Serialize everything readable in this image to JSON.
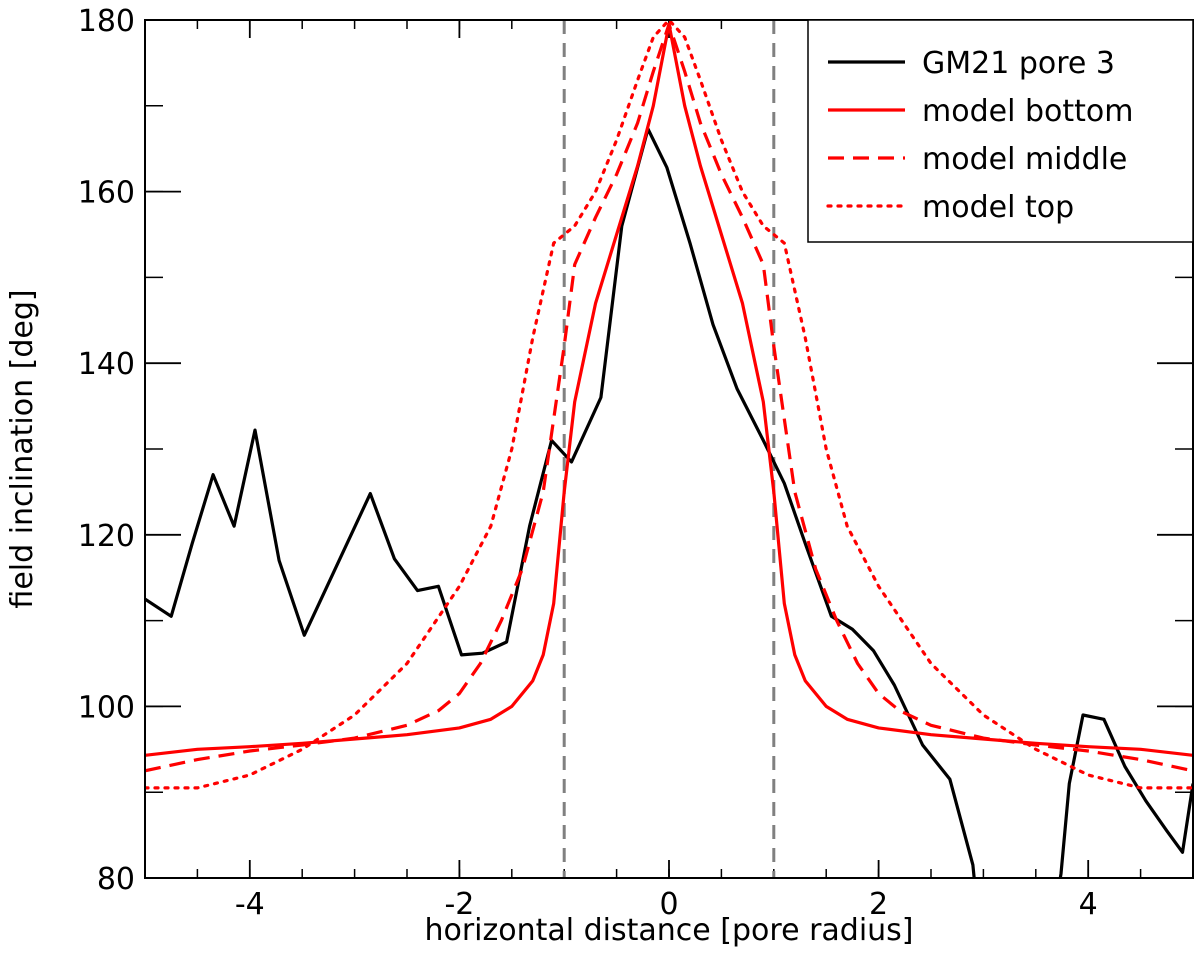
{
  "chart_data": {
    "type": "line",
    "title": "",
    "xlabel": "horizontal distance [pore radius]",
    "ylabel": "field inclination [deg]",
    "xlim": [
      -5,
      5
    ],
    "ylim": [
      80,
      180
    ],
    "x_ticks": [
      {
        "value": -4,
        "label": "-4"
      },
      {
        "value": -2,
        "label": "-2"
      },
      {
        "value": 0,
        "label": "0"
      },
      {
        "value": 2,
        "label": "2"
      },
      {
        "value": 4,
        "label": "4"
      }
    ],
    "y_ticks": [
      {
        "value": 80,
        "label": "80"
      },
      {
        "value": 100,
        "label": "100"
      },
      {
        "value": 120,
        "label": "120"
      },
      {
        "value": 140,
        "label": "140"
      },
      {
        "value": 160,
        "label": "160"
      },
      {
        "value": 180,
        "label": "180"
      }
    ],
    "x_minor_step": 0.5,
    "y_minor_step": 10,
    "grid": false,
    "legend_position": "top-right",
    "reference_lines": [
      {
        "x": -1,
        "color": "#808080",
        "dash": "dashed"
      },
      {
        "x": 1,
        "color": "#808080",
        "dash": "dashed"
      }
    ],
    "series": [
      {
        "name": "GM21 pore 3",
        "color": "#000000",
        "dash": "solid",
        "points": [
          [
            -5.0,
            112.5
          ],
          [
            -4.75,
            110.5
          ],
          [
            -4.55,
            119.0
          ],
          [
            -4.35,
            127.0
          ],
          [
            -4.15,
            121.0
          ],
          [
            -3.95,
            132.2
          ],
          [
            -3.72,
            117.0
          ],
          [
            -3.48,
            108.3
          ],
          [
            -2.85,
            124.8
          ],
          [
            -2.62,
            117.2
          ],
          [
            -2.4,
            113.5
          ],
          [
            -2.2,
            114.0
          ],
          [
            -1.98,
            106.0
          ],
          [
            -1.78,
            106.2
          ],
          [
            -1.55,
            107.5
          ],
          [
            -1.33,
            121.0
          ],
          [
            -1.12,
            131.0
          ],
          [
            -0.93,
            128.5
          ],
          [
            -0.65,
            136.0
          ],
          [
            -0.45,
            156.0
          ],
          [
            -0.2,
            167.3
          ],
          [
            -0.02,
            162.8
          ],
          [
            0.2,
            154.0
          ],
          [
            0.42,
            144.5
          ],
          [
            0.65,
            137.0
          ],
          [
            0.9,
            131.0
          ],
          [
            1.1,
            126.0
          ],
          [
            1.3,
            119.0
          ],
          [
            1.55,
            110.5
          ],
          [
            1.75,
            109.0
          ],
          [
            1.95,
            106.5
          ],
          [
            2.15,
            102.5
          ],
          [
            2.42,
            95.5
          ],
          [
            2.68,
            91.5
          ],
          [
            2.9,
            81.5
          ],
          [
            2.92,
            79.0
          ],
          [
            3.72,
            79.0
          ],
          [
            3.74,
            80.5
          ],
          [
            3.82,
            91.0
          ],
          [
            3.95,
            99.0
          ],
          [
            4.15,
            98.5
          ],
          [
            4.35,
            93.0
          ],
          [
            4.55,
            89.0
          ],
          [
            4.75,
            85.5
          ],
          [
            4.9,
            83.0
          ],
          [
            5.0,
            91.0
          ]
        ]
      },
      {
        "name": "model bottom",
        "color": "#ff0000",
        "dash": "solid",
        "points": [
          [
            -5.0,
            94.3
          ],
          [
            -4.5,
            95.0
          ],
          [
            -4.0,
            95.3
          ],
          [
            -3.5,
            95.7
          ],
          [
            -3.0,
            96.2
          ],
          [
            -2.5,
            96.7
          ],
          [
            -2.0,
            97.5
          ],
          [
            -1.7,
            98.5
          ],
          [
            -1.5,
            100.0
          ],
          [
            -1.3,
            103.0
          ],
          [
            -1.2,
            106.0
          ],
          [
            -1.1,
            112.0
          ],
          [
            -1.0,
            125.0
          ],
          [
            -0.9,
            135.5
          ],
          [
            -0.7,
            147.0
          ],
          [
            -0.5,
            155.0
          ],
          [
            -0.3,
            163.0
          ],
          [
            -0.15,
            170.0
          ],
          [
            0.0,
            179.5
          ],
          [
            0.15,
            170.0
          ],
          [
            0.3,
            163.0
          ],
          [
            0.5,
            155.0
          ],
          [
            0.7,
            147.0
          ],
          [
            0.9,
            135.5
          ],
          [
            1.0,
            125.0
          ],
          [
            1.1,
            112.0
          ],
          [
            1.2,
            106.0
          ],
          [
            1.3,
            103.0
          ],
          [
            1.5,
            100.0
          ],
          [
            1.7,
            98.5
          ],
          [
            2.0,
            97.5
          ],
          [
            2.5,
            96.7
          ],
          [
            3.0,
            96.2
          ],
          [
            3.5,
            95.7
          ],
          [
            4.0,
            95.3
          ],
          [
            4.5,
            95.0
          ],
          [
            5.0,
            94.3
          ]
        ]
      },
      {
        "name": "model middle",
        "color": "#ff0000",
        "dash": "dashed",
        "points": [
          [
            -5.0,
            92.5
          ],
          [
            -4.5,
            93.8
          ],
          [
            -4.0,
            94.8
          ],
          [
            -3.5,
            95.5
          ],
          [
            -3.0,
            96.3
          ],
          [
            -2.5,
            97.8
          ],
          [
            -2.2,
            99.5
          ],
          [
            -2.0,
            101.5
          ],
          [
            -1.8,
            105.0
          ],
          [
            -1.6,
            110.0
          ],
          [
            -1.4,
            116.0
          ],
          [
            -1.2,
            125.0
          ],
          [
            -1.0,
            142.0
          ],
          [
            -0.9,
            151.5
          ],
          [
            -0.7,
            157.0
          ],
          [
            -0.5,
            162.0
          ],
          [
            -0.3,
            168.0
          ],
          [
            -0.15,
            174.0
          ],
          [
            0.0,
            179.5
          ],
          [
            0.15,
            174.0
          ],
          [
            0.3,
            168.0
          ],
          [
            0.5,
            162.0
          ],
          [
            0.7,
            157.0
          ],
          [
            0.9,
            151.5
          ],
          [
            1.0,
            142.0
          ],
          [
            1.2,
            125.0
          ],
          [
            1.4,
            116.0
          ],
          [
            1.6,
            110.0
          ],
          [
            1.8,
            105.0
          ],
          [
            2.0,
            101.5
          ],
          [
            2.2,
            99.5
          ],
          [
            2.5,
            97.8
          ],
          [
            3.0,
            96.3
          ],
          [
            3.5,
            95.5
          ],
          [
            4.0,
            94.8
          ],
          [
            4.5,
            93.8
          ],
          [
            5.0,
            92.5
          ]
        ]
      },
      {
        "name": "model top",
        "color": "#ff0000",
        "dash": "dotted",
        "points": [
          [
            -5.0,
            90.5
          ],
          [
            -4.5,
            90.5
          ],
          [
            -4.0,
            92.0
          ],
          [
            -3.5,
            95.0
          ],
          [
            -3.0,
            99.0
          ],
          [
            -2.5,
            105.0
          ],
          [
            -2.0,
            114.0
          ],
          [
            -1.7,
            121.0
          ],
          [
            -1.5,
            130.0
          ],
          [
            -1.3,
            143.0
          ],
          [
            -1.1,
            154.0
          ],
          [
            -0.9,
            156.0
          ],
          [
            -0.7,
            160.0
          ],
          [
            -0.5,
            166.0
          ],
          [
            -0.3,
            173.0
          ],
          [
            -0.15,
            178.0
          ],
          [
            0.0,
            180.0
          ],
          [
            0.15,
            178.0
          ],
          [
            0.3,
            173.0
          ],
          [
            0.5,
            166.0
          ],
          [
            0.7,
            160.0
          ],
          [
            0.9,
            156.0
          ],
          [
            1.1,
            154.0
          ],
          [
            1.3,
            143.0
          ],
          [
            1.5,
            130.0
          ],
          [
            1.7,
            121.0
          ],
          [
            2.0,
            114.0
          ],
          [
            2.5,
            105.0
          ],
          [
            3.0,
            99.0
          ],
          [
            3.5,
            95.0
          ],
          [
            4.0,
            92.0
          ],
          [
            4.5,
            90.5
          ],
          [
            5.0,
            90.5
          ]
        ]
      }
    ]
  }
}
